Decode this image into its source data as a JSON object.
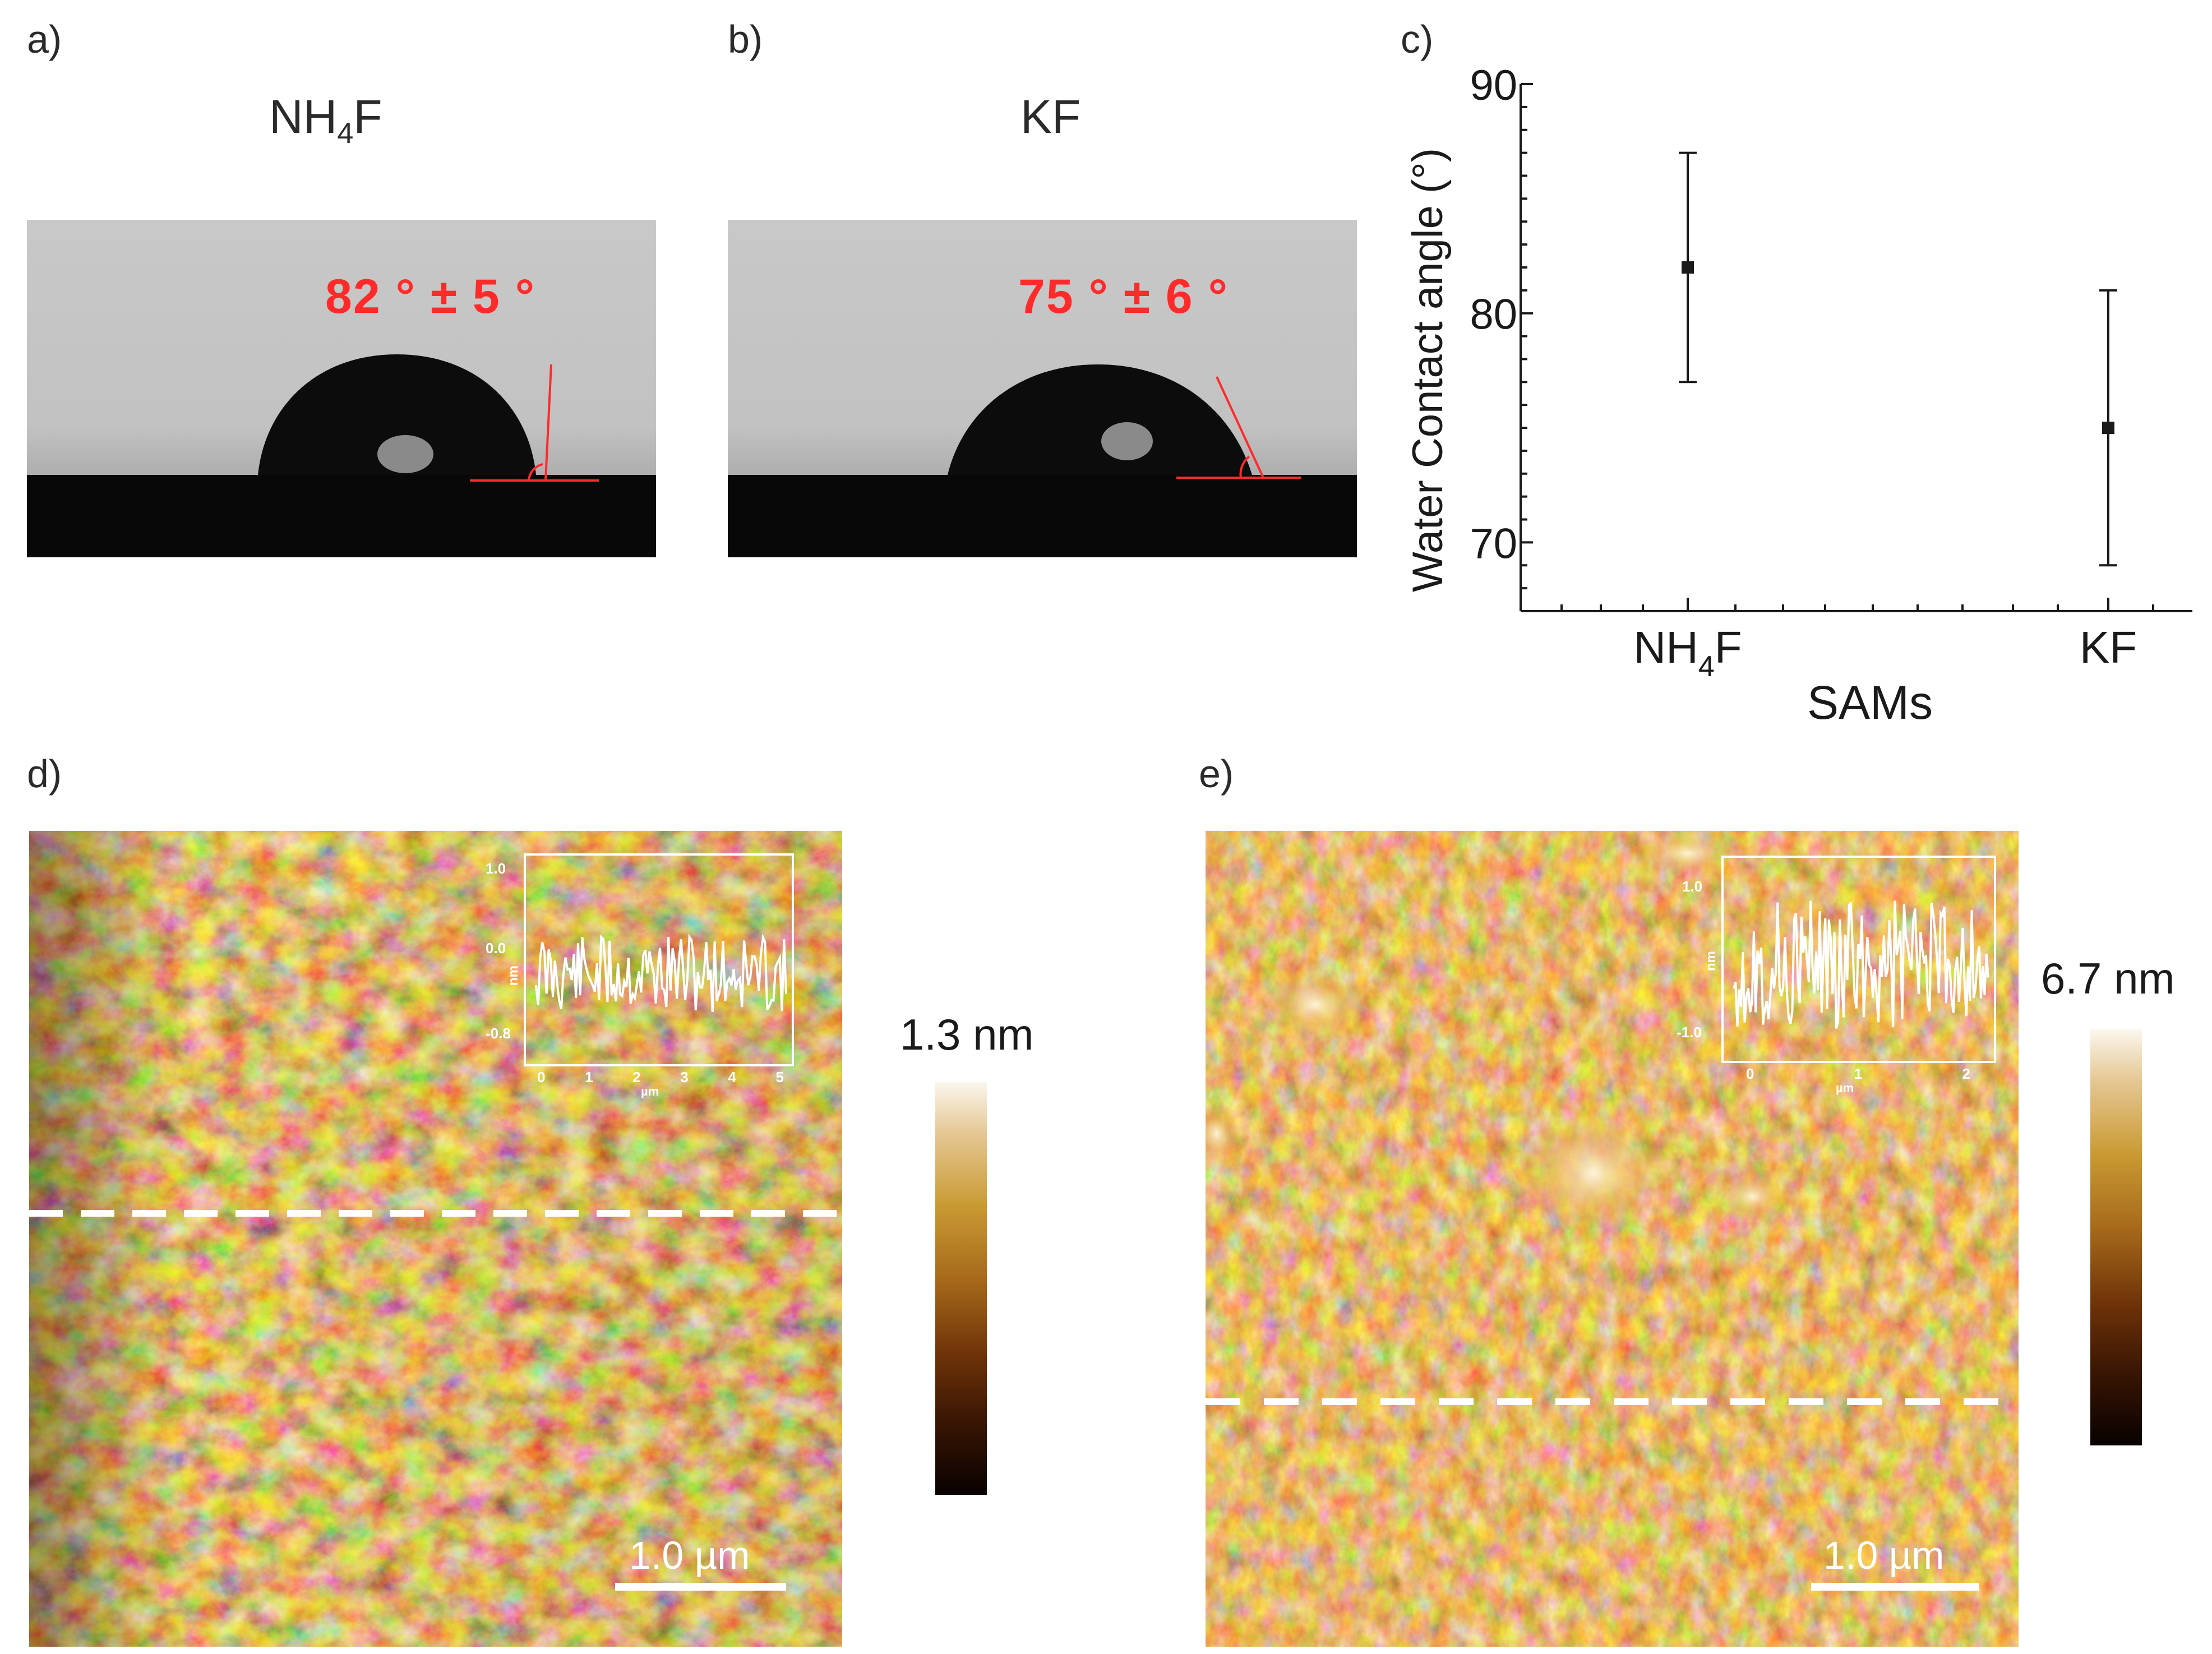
{
  "panels": {
    "a": {
      "label": "a)",
      "title": {
        "main": "NH",
        "sub": "4",
        "end": "F"
      },
      "angle_text": "82 ° ± 5 °"
    },
    "b": {
      "label": "b)",
      "title": "KF",
      "angle_text": "75 ° ± 6 °"
    },
    "c": {
      "label": "c)"
    },
    "d": {
      "label": "d)",
      "scalebar": "1.0 µm",
      "colorbar_label": "1.3 nm",
      "inset_yticks": [
        "1.0",
        "0.0",
        "-0.8"
      ],
      "inset_xticks": [
        "0",
        "1",
        "2",
        "3",
        "4",
        "5"
      ],
      "inset_xlabel": "µm",
      "inset_ylabel": "nm"
    },
    "e": {
      "label": "e)",
      "scalebar": "1.0 µm",
      "colorbar_label": "6.7 nm",
      "inset_yticks": [
        "1.0",
        "-1.0"
      ],
      "inset_xticks": [
        "0",
        "1",
        "2"
      ],
      "inset_xlabel": "µm",
      "inset_ylabel": "nm"
    }
  },
  "colors": {
    "angle_red": "#ff2a2a",
    "photo_bg": "#c4c4c4",
    "afm_dark": "#2a1204",
    "afm_mid": "#a05a14",
    "afm_light": "#f8ecc8"
  },
  "chart_data": {
    "type": "scatter",
    "categories": [
      "NH4F",
      "KF"
    ],
    "category_labels": [
      {
        "main": "NH",
        "sub": "4",
        "end": "F"
      },
      {
        "main": "KF",
        "sub": "",
        "end": ""
      }
    ],
    "values": [
      82,
      75
    ],
    "error_low": [
      77,
      69
    ],
    "error_high": [
      87,
      81
    ],
    "xlabel": "SAMs",
    "ylabel": "Water Contact angle (°)",
    "ylim": [
      67,
      90
    ],
    "yticks": [
      70,
      80,
      90
    ],
    "grid": false
  }
}
